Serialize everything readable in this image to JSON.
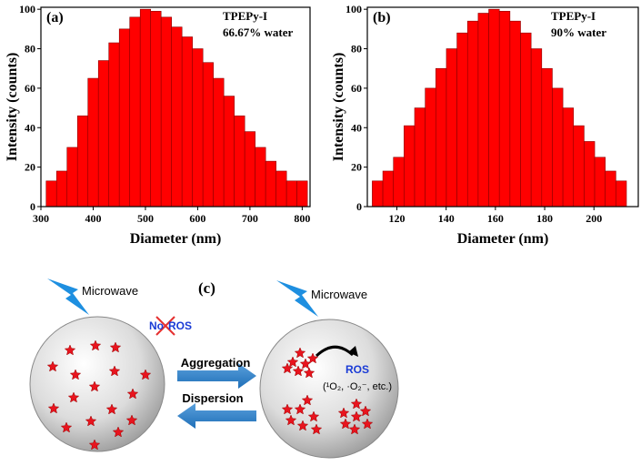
{
  "chart_data": [
    {
      "type": "histogram",
      "panel_label": "(a)",
      "annotations": [
        "TPEPy-I",
        "66.67% water"
      ],
      "x_label": "Diameter (nm)",
      "y_label": "Intensity (counts)",
      "bins": [
        310,
        330,
        350,
        370,
        390,
        410,
        430,
        450,
        470,
        490,
        510,
        530,
        550,
        570,
        590,
        610,
        630,
        650,
        670,
        690,
        710,
        730,
        750,
        770,
        790,
        810
      ],
      "values": [
        13,
        18,
        30,
        46,
        65,
        74,
        83,
        90,
        96,
        100,
        99,
        96,
        91,
        86,
        80,
        73,
        65,
        56,
        46,
        38,
        30,
        23,
        18,
        13,
        13
      ],
      "color": "#ff0000",
      "xlim": [
        300,
        815
      ],
      "ylim": [
        0,
        101
      ],
      "xticks": [
        300,
        400,
        500,
        600,
        700,
        800
      ],
      "yticks": [
        0,
        20,
        40,
        60,
        80,
        100
      ]
    },
    {
      "type": "histogram",
      "panel_label": "(b)",
      "annotations": [
        "TPEPy-I",
        "90% water"
      ],
      "x_label": "Diameter (nm)",
      "y_label": "Intensity (counts)",
      "bins": [
        110,
        114.3,
        118.6,
        122.9,
        127.2,
        131.5,
        135.8,
        140.1,
        144.4,
        148.7,
        153,
        157.3,
        161.6,
        165.9,
        170.2,
        174.5,
        178.8,
        183.1,
        187.4,
        191.7,
        196,
        200.3,
        204.6,
        208.9,
        213.2
      ],
      "values": [
        13,
        18,
        25,
        41,
        50,
        60,
        70,
        80,
        88,
        94,
        98,
        100,
        99,
        94,
        88,
        80,
        70,
        60,
        50,
        41,
        33,
        25,
        18,
        13
      ],
      "color": "#ff0000",
      "xlim": [
        108,
        218
      ],
      "ylim": [
        0,
        101
      ],
      "xticks": [
        120,
        140,
        160,
        180,
        200
      ],
      "yticks": [
        0,
        20,
        40,
        60,
        80,
        100
      ]
    }
  ],
  "diagram": {
    "panel_label": "(c)",
    "left_source": "Microwave",
    "right_source": "Microwave",
    "no": "No",
    "no_ros": "ROS",
    "forward": "Aggregation",
    "backward": "Dispersion",
    "ros": "ROS",
    "ros_species": "(¹O₂, ·O₂⁻, etc.)"
  }
}
